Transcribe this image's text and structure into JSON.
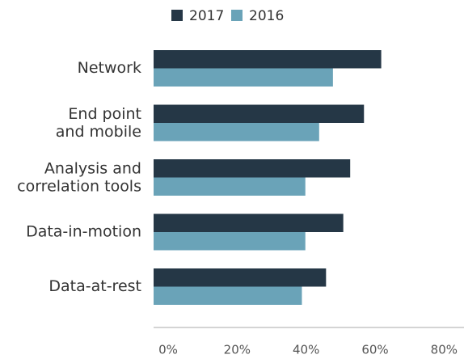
{
  "chart_data": {
    "type": "bar",
    "orientation": "horizontal",
    "categories": [
      "Network",
      "End point\nand mobile",
      "Analysis and\ncorrelation tools",
      "Data-in-motion",
      "Data-at-rest"
    ],
    "series": [
      {
        "name": "2017",
        "color": "#253746",
        "values": [
          66,
          61,
          57,
          55,
          50
        ]
      },
      {
        "name": "2016",
        "color": "#6aa3b8",
        "values": [
          52,
          48,
          44,
          44,
          43
        ]
      }
    ],
    "xlim": [
      0,
      90
    ],
    "xticks": [
      {
        "value": 0,
        "label": "0%"
      },
      {
        "value": 20,
        "label": "20%"
      },
      {
        "value": 40,
        "label": "40%"
      },
      {
        "value": 60,
        "label": "60%"
      },
      {
        "value": 80,
        "label": "80%"
      }
    ],
    "legend": "top"
  }
}
